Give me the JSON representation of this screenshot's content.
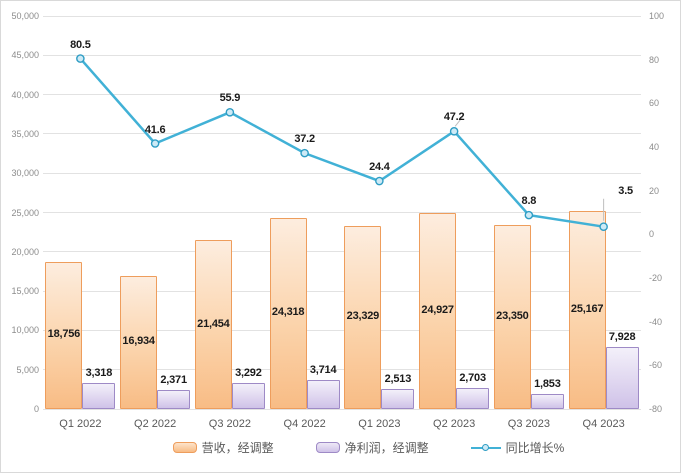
{
  "chart_data": {
    "type": "bar",
    "subtype": "combo-bar-line",
    "title": "",
    "categories": [
      "Q1 2022",
      "Q2 2022",
      "Q3 2022",
      "Q4 2022",
      "Q1 2023",
      "Q2 2023",
      "Q3 2023",
      "Q4 2023"
    ],
    "series": [
      {
        "name": "营收，经调整",
        "type": "bar",
        "axis": "left",
        "values": [
          18756,
          16934,
          21454,
          24318,
          23329,
          24927,
          23350,
          25167
        ],
        "labels": [
          "18,756",
          "16,934",
          "21,454",
          "24,318",
          "23,329",
          "24,927",
          "23,350",
          "25,167"
        ],
        "fill_top": "#fdeddf",
        "fill_bottom": "#f8bc85",
        "border": "#ee9d5c"
      },
      {
        "name": "净利润，经调整",
        "type": "bar",
        "axis": "left",
        "values": [
          3318,
          2371,
          3292,
          3714,
          2513,
          2703,
          1853,
          7928
        ],
        "labels": [
          "3,318",
          "2,371",
          "3,292",
          "3,714",
          "2,513",
          "2,703",
          "1,853",
          "7,928"
        ],
        "fill_top": "#f3f0fa",
        "fill_bottom": "#cfc2e8",
        "border": "#9e8ac6"
      },
      {
        "name": "同比增长%",
        "type": "line",
        "axis": "right",
        "values": [
          80.5,
          41.6,
          55.9,
          37.2,
          24.4,
          47.2,
          8.8,
          3.5
        ],
        "labels": [
          "80.5",
          "41.6",
          "55.9",
          "37.2",
          "24.4",
          "47.2",
          "8.8",
          "3.5"
        ],
        "color": "#41b1d6",
        "marker_fill": "#cdeaf6",
        "marker_border": "#2f9dc4"
      }
    ],
    "left_axis": {
      "min": 0,
      "max": 50000,
      "step": 5000,
      "ticks": [
        "50,000",
        "45,000",
        "40,000",
        "35,000",
        "30,000",
        "25,000",
        "20,000",
        "15,000",
        "10,000",
        "5,000",
        "0"
      ]
    },
    "right_axis": {
      "min": -80,
      "max": 100,
      "step": 20,
      "ticks": [
        "100",
        "80",
        "60",
        "40",
        "20",
        "0",
        "-20",
        "-40",
        "-60",
        "-80"
      ]
    },
    "grid": true,
    "gridline_color": "#e2e2e2",
    "axis_text_color": "#8c8c8c",
    "category_text_color": "#595959",
    "data_label_color": "#1a1a1a",
    "legend_position": "bottom"
  }
}
